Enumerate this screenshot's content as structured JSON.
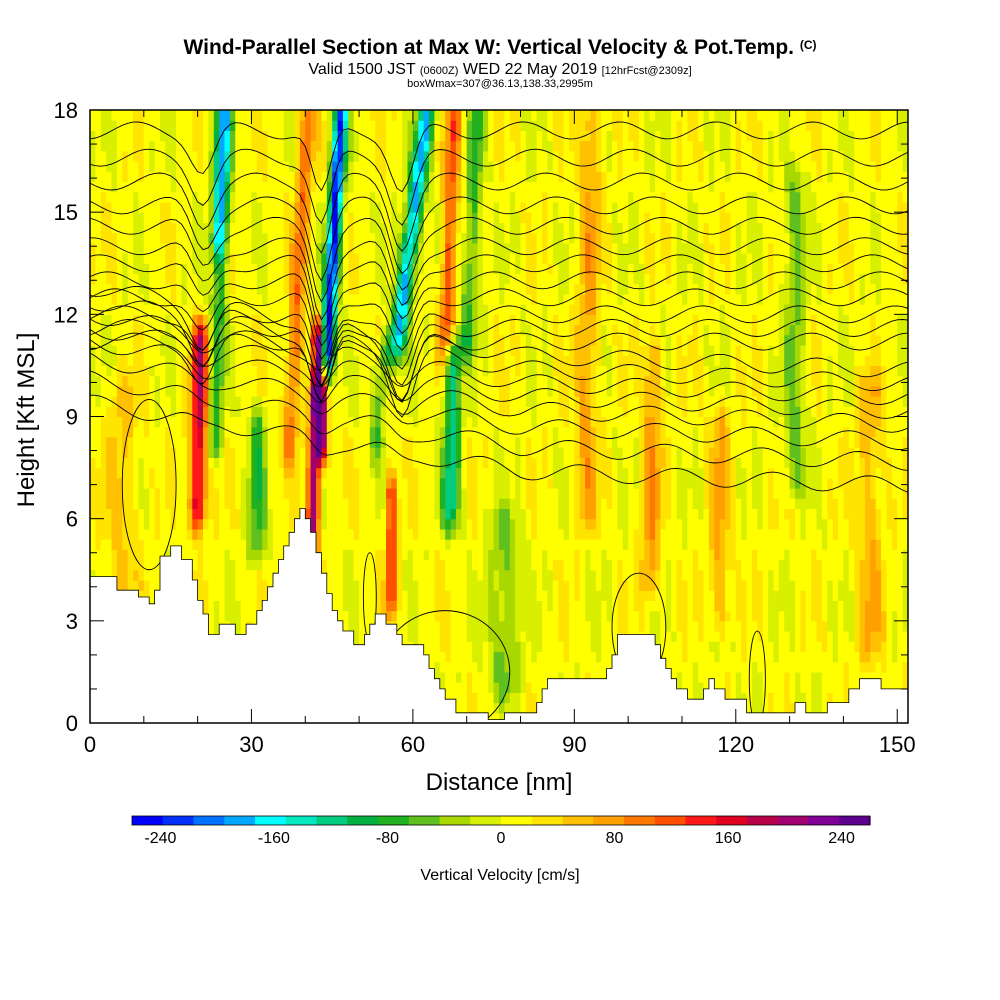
{
  "chart_data": {
    "type": "heatmap",
    "title": "Wind-Parallel Section at Max W: Vertical Velocity & Pot.Temp.",
    "title_suffix": "(C)",
    "subtitle_main": "Valid 1500 JST",
    "subtitle_zulu": "(0600Z)",
    "subtitle_date": "WED 22 May 2019",
    "subtitle_fcst": "[12hrFcst@2309z]",
    "boxinfo": "boxWmax=307@36.13,138.33,2995m",
    "xlabel": "Distance [nm]",
    "ylabel": "Height [Kft MSL]",
    "xlim": [
      0,
      152
    ],
    "ylim": [
      0,
      18
    ],
    "xticks": [
      "0",
      "30",
      "60",
      "90",
      "120",
      "150"
    ],
    "yticks": [
      "0",
      "3",
      "6",
      "9",
      "12",
      "15",
      "18"
    ],
    "colorbar": {
      "label": "Vertical Velocity [cm/s]",
      "tick_labels": [
        "-240",
        "-160",
        "-80",
        "0",
        "80",
        "160",
        "240"
      ],
      "range": [
        -260,
        260
      ],
      "colors": [
        "#0000ff",
        "#0030ff",
        "#0070ff",
        "#00a8ff",
        "#00ffff",
        "#00e8c0",
        "#00cc80",
        "#00b040",
        "#20b020",
        "#60c020",
        "#a8d800",
        "#d8f000",
        "#ffff00",
        "#ffe400",
        "#ffc000",
        "#ffa000",
        "#ff7800",
        "#ff5000",
        "#ff1818",
        "#e00020",
        "#b80048",
        "#a00070",
        "#800098",
        "#5c0090"
      ]
    },
    "terrain": [
      [
        0,
        4.3
      ],
      [
        5,
        4.3
      ],
      [
        5,
        3.9
      ],
      [
        9,
        3.9
      ],
      [
        9,
        3.7
      ],
      [
        11,
        3.7
      ],
      [
        11,
        3.5
      ],
      [
        12,
        3.5
      ],
      [
        12,
        3.9
      ],
      [
        13,
        3.9
      ],
      [
        13,
        4.9
      ],
      [
        15,
        4.9
      ],
      [
        15,
        5.2
      ],
      [
        17,
        5.2
      ],
      [
        17,
        4.8
      ],
      [
        19,
        4.8
      ],
      [
        19,
        4.2
      ],
      [
        20,
        4.2
      ],
      [
        20,
        3.6
      ],
      [
        21,
        3.6
      ],
      [
        21,
        3.2
      ],
      [
        22,
        3.2
      ],
      [
        22,
        2.6
      ],
      [
        24,
        2.6
      ],
      [
        24,
        2.9
      ],
      [
        27,
        2.9
      ],
      [
        27,
        2.6
      ],
      [
        29,
        2.6
      ],
      [
        29,
        2.9
      ],
      [
        31,
        2.9
      ],
      [
        31,
        3.3
      ],
      [
        32,
        3.3
      ],
      [
        32,
        3.6
      ],
      [
        33,
        3.6
      ],
      [
        33,
        4.0
      ],
      [
        34,
        4.0
      ],
      [
        34,
        4.4
      ],
      [
        35,
        4.4
      ],
      [
        35,
        4.8
      ],
      [
        36,
        4.8
      ],
      [
        36,
        5.2
      ],
      [
        37,
        5.2
      ],
      [
        37,
        5.6
      ],
      [
        38,
        5.6
      ],
      [
        38,
        6.0
      ],
      [
        39,
        6.0
      ],
      [
        39,
        6.3
      ],
      [
        40,
        6.3
      ],
      [
        40,
        6.0
      ],
      [
        41,
        6.0
      ],
      [
        41,
        5.6
      ],
      [
        42,
        5.6
      ],
      [
        42,
        5.0
      ],
      [
        43,
        5.0
      ],
      [
        43,
        4.4
      ],
      [
        44,
        4.4
      ],
      [
        44,
        3.8
      ],
      [
        45,
        3.8
      ],
      [
        45,
        3.3
      ],
      [
        46,
        3.3
      ],
      [
        46,
        3.0
      ],
      [
        47,
        3.0
      ],
      [
        47,
        2.7
      ],
      [
        49,
        2.7
      ],
      [
        49,
        2.3
      ],
      [
        51,
        2.3
      ],
      [
        51,
        2.6
      ],
      [
        52,
        2.6
      ],
      [
        52,
        2.9
      ],
      [
        53,
        2.9
      ],
      [
        53,
        3.2
      ],
      [
        55,
        3.2
      ],
      [
        55,
        2.9
      ],
      [
        57,
        2.9
      ],
      [
        57,
        2.6
      ],
      [
        58,
        2.6
      ],
      [
        58,
        2.3
      ],
      [
        62,
        2.3
      ],
      [
        62,
        2.0
      ],
      [
        63,
        2.0
      ],
      [
        63,
        1.6
      ],
      [
        64,
        1.6
      ],
      [
        64,
        1.3
      ],
      [
        65,
        1.3
      ],
      [
        65,
        1.0
      ],
      [
        66,
        1.0
      ],
      [
        66,
        0.7
      ],
      [
        68,
        0.7
      ],
      [
        68,
        0.3
      ],
      [
        74,
        0.3
      ],
      [
        74,
        0.1
      ],
      [
        77,
        0.1
      ],
      [
        77,
        0.3
      ],
      [
        83,
        0.3
      ],
      [
        83,
        0.6
      ],
      [
        84,
        0.6
      ],
      [
        84,
        1.0
      ],
      [
        85,
        1.0
      ],
      [
        85,
        1.3
      ],
      [
        96,
        1.3
      ],
      [
        96,
        1.6
      ],
      [
        97,
        1.6
      ],
      [
        97,
        2.0
      ],
      [
        98,
        2.0
      ],
      [
        98,
        2.6
      ],
      [
        105,
        2.6
      ],
      [
        105,
        2.3
      ],
      [
        106,
        2.3
      ],
      [
        106,
        1.9
      ],
      [
        107,
        1.9
      ],
      [
        107,
        1.6
      ],
      [
        108,
        1.6
      ],
      [
        108,
        1.3
      ],
      [
        109,
        1.3
      ],
      [
        109,
        1.0
      ],
      [
        111,
        1.0
      ],
      [
        111,
        0.7
      ],
      [
        114,
        0.7
      ],
      [
        114,
        1.0
      ],
      [
        115,
        1.0
      ],
      [
        115,
        1.3
      ],
      [
        116,
        1.3
      ],
      [
        116,
        1.0
      ],
      [
        118,
        1.0
      ],
      [
        118,
        0.7
      ],
      [
        122,
        0.7
      ],
      [
        122,
        0.3
      ],
      [
        131,
        0.3
      ],
      [
        131,
        0.6
      ],
      [
        133,
        0.6
      ],
      [
        133,
        0.3
      ],
      [
        137,
        0.3
      ],
      [
        137,
        0.6
      ],
      [
        141,
        0.6
      ],
      [
        141,
        1.0
      ],
      [
        143,
        1.0
      ],
      [
        143,
        1.3
      ],
      [
        147,
        1.3
      ],
      [
        147,
        1.0
      ],
      [
        152,
        1.0
      ]
    ]
  }
}
